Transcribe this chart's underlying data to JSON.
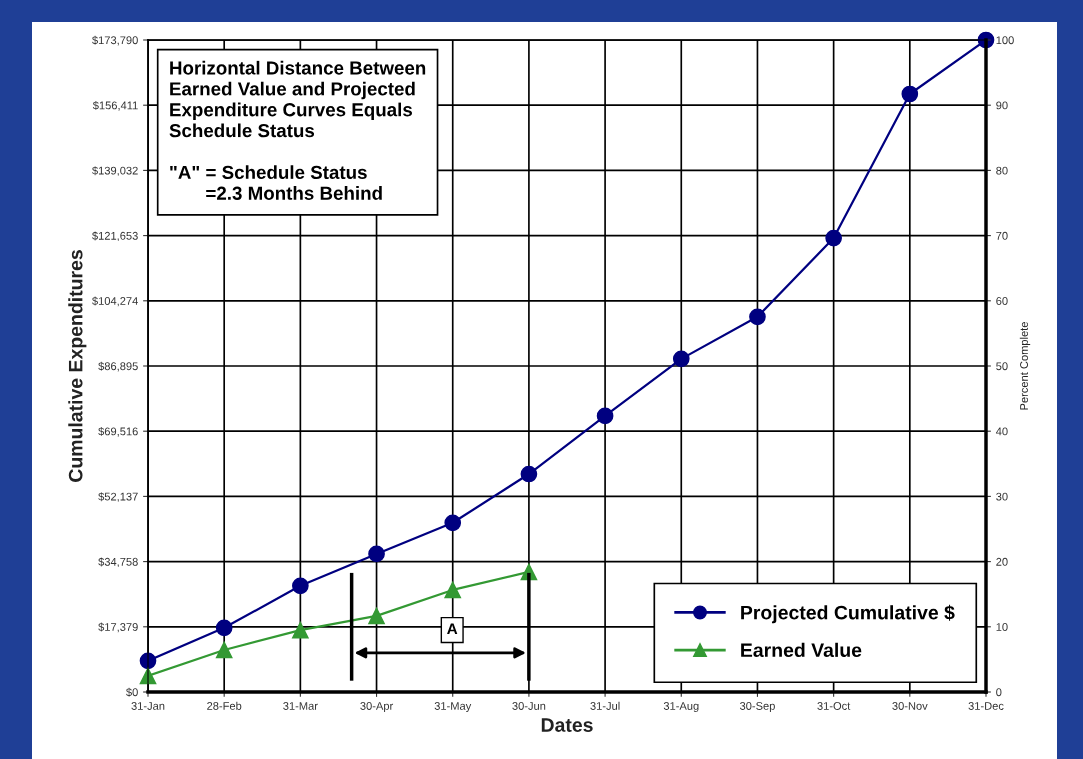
{
  "chart_data": {
    "type": "line",
    "xlabel": "Dates",
    "ylabel": "Cumulative Expenditures",
    "y2label": "Percent Complete",
    "categories": [
      "31-Jan",
      "28-Feb",
      "31-Mar",
      "30-Apr",
      "31-May",
      "30-Jun",
      "31-Jul",
      "31-Aug",
      "30-Sep",
      "31-Oct",
      "30-Nov",
      "31-Dec"
    ],
    "series": [
      {
        "name": "Projected Cumulative $",
        "color": "#000080",
        "marker": "circle",
        "values": [
          8300,
          17100,
          28300,
          36800,
          45100,
          58100,
          73600,
          88800,
          100000,
          121000,
          159400,
          173790
        ]
      },
      {
        "name": "Earned Value",
        "color": "#339933",
        "marker": "triangle",
        "values": [
          4300,
          11200,
          16500,
          20300,
          27200,
          32000,
          null,
          null,
          null,
          null,
          null,
          null
        ]
      }
    ],
    "ylim": [
      0,
      173790
    ],
    "yticks": [
      {
        "value": 0,
        "label": "$0"
      },
      {
        "value": 17379,
        "label": "$17,379"
      },
      {
        "value": 34758,
        "label": "$34,758"
      },
      {
        "value": 52137,
        "label": "$52,137"
      },
      {
        "value": 69516,
        "label": "$69,516"
      },
      {
        "value": 86895,
        "label": "$86,895"
      },
      {
        "value": 104274,
        "label": "$104,274"
      },
      {
        "value": 121653,
        "label": "$121,653"
      },
      {
        "value": 139032,
        "label": "$139,032"
      },
      {
        "value": 156411,
        "label": "$156,411"
      },
      {
        "value": 173790,
        "label": "$173,790"
      }
    ],
    "y2lim": [
      0,
      100
    ],
    "y2ticks": [
      0,
      10,
      20,
      30,
      40,
      50,
      60,
      70,
      80,
      90,
      100
    ],
    "grid": true,
    "legend": "bottom right",
    "line_style": "solid",
    "annotations": [
      "Horizontal Distance Between\nEarned Value and Projected\nExpenditure Curves Equals\nSchedule Status\n\n\"A\" = Schedule Status\n       =2.3 Months Behind",
      "A"
    ]
  }
}
